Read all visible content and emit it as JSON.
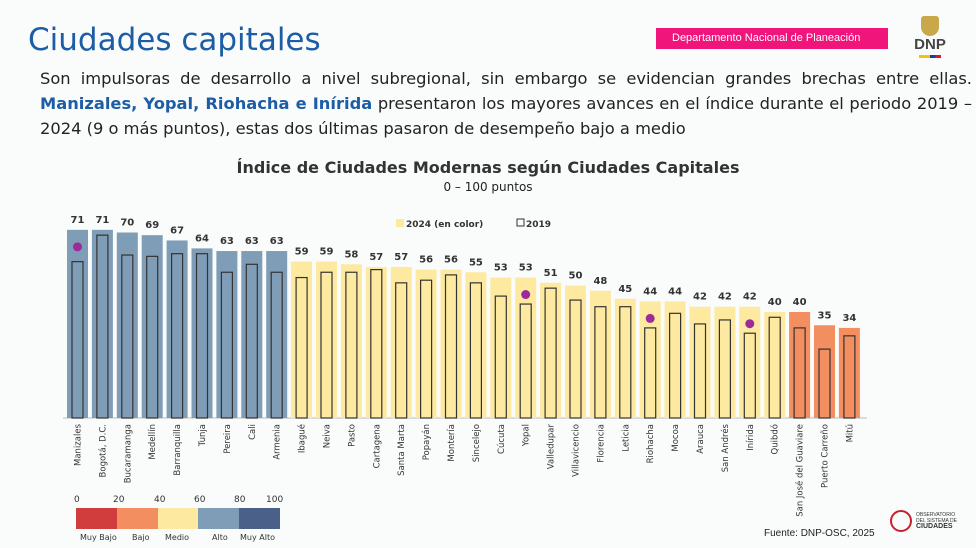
{
  "header": {
    "title": "Ciudades capitales",
    "org_label": "Departamento Nacional de Planeación",
    "logo_text": "DNP"
  },
  "paragraph": {
    "part1": "Son impulsoras de desarrollo a nivel subregional, sin embargo se evidencian grandes brechas entre ellas. ",
    "highlight": "Manizales, Yopal, Riohacha e Inírida",
    "part2": " presentaron los mayores avances en el índice durante el periodo 2019 – 2024 (9 o más puntos), estas dos últimas pasaron de desempeño bajo a medio"
  },
  "chart_data": {
    "type": "bar",
    "title": "Índice de Ciudades Modernas según Ciudades Capitales",
    "subtitle": "0 – 100 puntos",
    "ylim": [
      0,
      100
    ],
    "legend": {
      "position": "top-right",
      "series": [
        "2024 (en color)",
        "2019"
      ]
    },
    "categories": [
      "Manizales",
      "Bogotá, D.C.",
      "Bucaramanga",
      "Medellín",
      "Barranquilla",
      "Tunja",
      "Pereira",
      "Cali",
      "Armenia",
      "Ibagué",
      "Neiva",
      "Pasto",
      "Cartagena",
      "Santa Marta",
      "Popayán",
      "Montería",
      "Sincelejo",
      "Cúcuta",
      "Yopal",
      "Valledupar",
      "Villavicencio",
      "Florencia",
      "Leticia",
      "Riohacha",
      "Mocoa",
      "Arauca",
      "San Andrés",
      "Inírida",
      "Quibdó",
      "San José del Guaviare",
      "Puerto Carreño",
      "Mitú"
    ],
    "series": [
      {
        "name": "2024 (en color)",
        "values": [
          71,
          71,
          70,
          69,
          67,
          64,
          63,
          63,
          63,
          59,
          59,
          58,
          57,
          57,
          56,
          56,
          55,
          53,
          53,
          51,
          50,
          48,
          45,
          44,
          44,
          42,
          42,
          42,
          40,
          40,
          35,
          34
        ]
      },
      {
        "name": "2019",
        "values": [
          59,
          69,
          61.5,
          61,
          62,
          62,
          55,
          58,
          55,
          53,
          55,
          55,
          56,
          51,
          52,
          54,
          51,
          46,
          43,
          49,
          44.5,
          42,
          42,
          34,
          39.5,
          35.5,
          37,
          32,
          38,
          34,
          26,
          31
        ]
      }
    ],
    "levels": [
      "Alto",
      "Alto",
      "Alto",
      "Alto",
      "Alto",
      "Alto",
      "Alto",
      "Alto",
      "Alto",
      "Medio",
      "Medio",
      "Medio",
      "Medio",
      "Medio",
      "Medio",
      "Medio",
      "Medio",
      "Medio",
      "Medio",
      "Medio",
      "Medio",
      "Medio",
      "Medio",
      "Medio",
      "Medio",
      "Medio",
      "Medio",
      "Medio",
      "Medio",
      "Bajo",
      "Bajo",
      "Bajo"
    ],
    "highlighted": [
      "Manizales",
      "Yopal",
      "Riohacha",
      "Inírida"
    ],
    "colors": {
      "Muy Bajo": "#d13c3c",
      "Bajo": "#f38e60",
      "Medio": "#fde99f",
      "Alto": "#7f9db6",
      "Muy Alto": "#4b6088",
      "dot": "#9c2a98",
      "outline": "#333333"
    }
  },
  "scale": {
    "ticks": [
      "0",
      "20",
      "40",
      "60",
      "80",
      "100"
    ],
    "labels": [
      "Muy Bajo",
      "Bajo",
      "Medio",
      "Alto",
      "Muy Alto"
    ]
  },
  "footer": {
    "source": "Fuente: DNP-OSC, 2025",
    "osc_line1": "OBSERVATORIO",
    "osc_line2": "DEL SISTEMA DE",
    "osc_line3": "CIUDADES"
  }
}
